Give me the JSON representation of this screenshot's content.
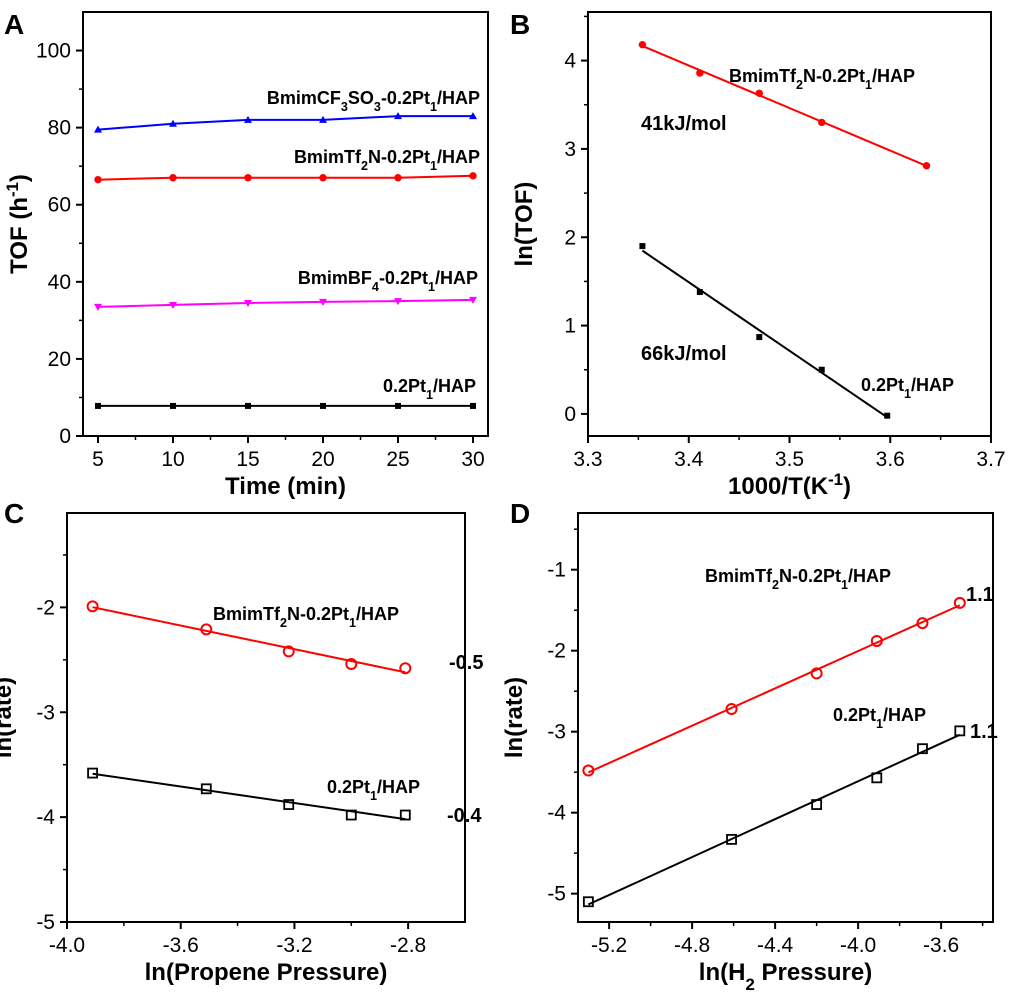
{
  "chart_data": [
    {
      "panel": "A",
      "type": "line",
      "xlabel": "Time (min)",
      "ylabel": "TOF (h⁻¹)",
      "xlim": [
        4,
        31
      ],
      "ylim": [
        0,
        110
      ],
      "xticks": [
        5,
        10,
        15,
        20,
        25,
        30
      ],
      "yticks": [
        0,
        20,
        40,
        60,
        80,
        100
      ],
      "x": [
        5,
        10,
        15,
        20,
        25,
        30
      ],
      "series": [
        {
          "name": "BmimCF₃SO₃-0.2Pt₁/HAP",
          "color": "#0000ff",
          "marker": "triangle-up",
          "values": [
            79.5,
            81,
            82,
            82,
            83,
            83
          ]
        },
        {
          "name": "BmimTf₂N-0.2Pt₁/HAP",
          "color": "#ff0000",
          "marker": "circle",
          "values": [
            66.5,
            67,
            67,
            67,
            67,
            67.5
          ]
        },
        {
          "name": "BmimBF₄-0.2Pt₁/HAP",
          "color": "#ff00ff",
          "marker": "triangle-down",
          "values": [
            33.5,
            34,
            34.5,
            34.8,
            35,
            35.3
          ]
        },
        {
          "name": "0.2Pt₁/HAP",
          "color": "#000000",
          "marker": "square",
          "values": [
            7.8,
            7.8,
            7.8,
            7.8,
            7.8,
            7.8
          ]
        }
      ]
    },
    {
      "panel": "B",
      "type": "scatter",
      "xlabel": "1000/T(K⁻¹)",
      "ylabel": "ln(TOF)",
      "xlim": [
        3.3,
        3.7
      ],
      "ylim": [
        -0.25,
        4.55
      ],
      "xticks": [
        3.3,
        3.4,
        3.5,
        3.6,
        3.7
      ],
      "yticks": [
        0,
        1,
        2,
        3,
        4
      ],
      "series": [
        {
          "name": "BmimTf₂N-0.2Pt₁/HAP",
          "color": "#ff0000",
          "marker": "circle",
          "fit": true,
          "x": [
            3.354,
            3.411,
            3.47,
            3.532,
            3.636
          ],
          "values": [
            4.18,
            3.86,
            3.63,
            3.3,
            2.81
          ],
          "annotation": "41kJ/mol"
        },
        {
          "name": "0.2Pt₁/HAP",
          "color": "#000000",
          "marker": "square",
          "fit": true,
          "x": [
            3.354,
            3.411,
            3.47,
            3.532,
            3.597
          ],
          "values": [
            1.9,
            1.38,
            0.87,
            0.5,
            -0.02
          ],
          "annotation": "66kJ/mol"
        }
      ]
    },
    {
      "panel": "C",
      "type": "scatter",
      "xlabel": "ln(Propene Pressure)",
      "ylabel": "ln(rate)",
      "xlim": [
        -4.0,
        -2.6
      ],
      "ylim": [
        -5,
        -1.1
      ],
      "xticks": [
        -4.0,
        -3.6,
        -3.2,
        -2.8
      ],
      "xtick_labels": [
        "-4.0",
        "-3.6",
        "-3.2",
        "-2.8"
      ],
      "yticks": [
        -5,
        -4,
        -3,
        -2
      ],
      "series": [
        {
          "name": "BmimTf₂N-0.2Pt₁/HAP",
          "color": "#ff0000",
          "marker": "open-circle",
          "fit": true,
          "x": [
            -3.91,
            -3.51,
            -3.22,
            -3.0,
            -2.81
          ],
          "values": [
            -1.99,
            -2.21,
            -2.42,
            -2.54,
            -2.58
          ],
          "annotation": "-0.5"
        },
        {
          "name": "0.2Pt₁/HAP",
          "color": "#000000",
          "marker": "open-square",
          "fit": true,
          "x": [
            -3.91,
            -3.51,
            -3.22,
            -3.0,
            -2.81
          ],
          "values": [
            -3.58,
            -3.73,
            -3.88,
            -3.98,
            -3.98
          ],
          "annotation": "-0.4"
        }
      ]
    },
    {
      "panel": "D",
      "type": "scatter",
      "xlabel": "ln(H₂ Pressure)",
      "ylabel": "ln(rate)",
      "xlim": [
        -5.35,
        -3.35
      ],
      "ylim": [
        -5.35,
        -0.3
      ],
      "xticks": [
        -5.2,
        -4.8,
        -4.4,
        -4.0,
        -3.6
      ],
      "xtick_labels": [
        "-5.2",
        "-4.8",
        "-4.4",
        "-4.0",
        "-3.6"
      ],
      "yticks": [
        -5,
        -4,
        -3,
        -2,
        -1
      ],
      "series": [
        {
          "name": "BmimTf₂N-0.2Pt₁/HAP",
          "color": "#ff0000",
          "marker": "open-circle",
          "fit": true,
          "x": [
            -5.3,
            -4.61,
            -4.2,
            -3.91,
            -3.69,
            -3.51
          ],
          "values": [
            -3.48,
            -2.72,
            -2.28,
            -1.88,
            -1.66,
            -1.41
          ],
          "annotation": "1.1"
        },
        {
          "name": "0.2Pt₁/HAP",
          "color": "#000000",
          "marker": "open-square",
          "fit": true,
          "x": [
            -5.3,
            -4.61,
            -4.2,
            -3.91,
            -3.69,
            -3.51
          ],
          "values": [
            -5.1,
            -4.33,
            -3.9,
            -3.57,
            -3.21,
            -2.99
          ],
          "annotation": "1.1"
        }
      ]
    }
  ],
  "panels": {
    "A": {
      "letter": "A"
    },
    "B": {
      "letter": "B"
    },
    "C": {
      "letter": "C"
    },
    "D": {
      "letter": "D"
    }
  }
}
